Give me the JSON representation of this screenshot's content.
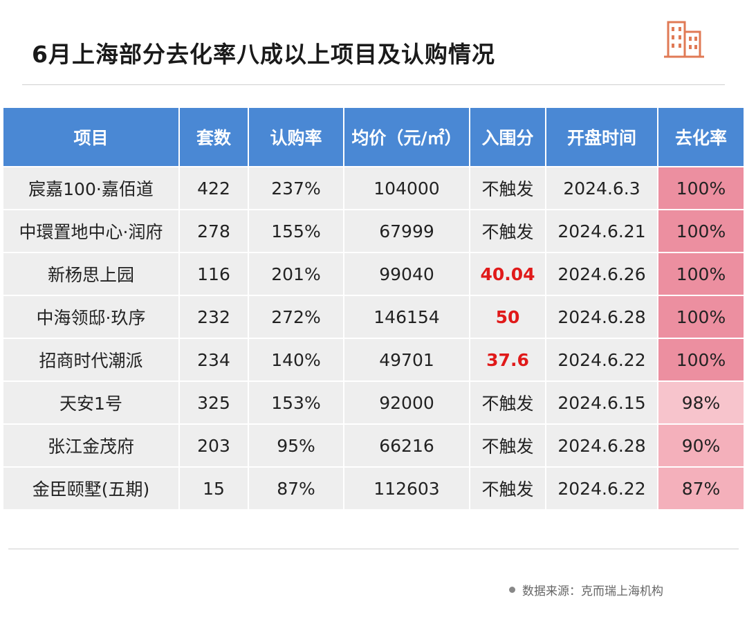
{
  "title": "6月上海部分去化率八成以上项目及认购情况",
  "colors": {
    "header_bg": "#4a88d4",
    "row_bg": "#eeeeee",
    "highlight_text": "#e01a1a",
    "rate_100": "#ec8fa0",
    "rate_98": "#f7c4cc",
    "rate_90": "#f4b0bb",
    "rate_87": "#f4b0bb"
  },
  "logo_icon": "building-icon",
  "table": {
    "headers": [
      "项目",
      "套数",
      "认购率",
      "均价（元/㎡）",
      "入围分",
      "开盘时间",
      "去化率"
    ],
    "rows": [
      {
        "project": "宸嘉100·嘉佰道",
        "units": "422",
        "subscription_rate": "237%",
        "avg_price": "104000",
        "qualify_score": "不触发",
        "qualify_highlight": false,
        "open_date": "2024.6.3",
        "sell_through": "100%",
        "sell_through_value": 100
      },
      {
        "project": "中環置地中心·润府",
        "units": "278",
        "subscription_rate": "155%",
        "avg_price": "67999",
        "qualify_score": "不触发",
        "qualify_highlight": false,
        "open_date": "2024.6.21",
        "sell_through": "100%",
        "sell_through_value": 100
      },
      {
        "project": "新杨思上园",
        "units": "116",
        "subscription_rate": "201%",
        "avg_price": "99040",
        "qualify_score": "40.04",
        "qualify_highlight": true,
        "open_date": "2024.6.26",
        "sell_through": "100%",
        "sell_through_value": 100
      },
      {
        "project": "中海领邸·玖序",
        "units": "232",
        "subscription_rate": "272%",
        "avg_price": "146154",
        "qualify_score": "50",
        "qualify_highlight": true,
        "open_date": "2024.6.28",
        "sell_through": "100%",
        "sell_through_value": 100
      },
      {
        "project": "招商时代潮派",
        "units": "234",
        "subscription_rate": "140%",
        "avg_price": "49701",
        "qualify_score": "37.6",
        "qualify_highlight": true,
        "open_date": "2024.6.22",
        "sell_through": "100%",
        "sell_through_value": 100
      },
      {
        "project": "天安1号",
        "units": "325",
        "subscription_rate": "153%",
        "avg_price": "92000",
        "qualify_score": "不触发",
        "qualify_highlight": false,
        "open_date": "2024.6.15",
        "sell_through": "98%",
        "sell_through_value": 98
      },
      {
        "project": "张江金茂府",
        "units": "203",
        "subscription_rate": "95%",
        "avg_price": "66216",
        "qualify_score": "不触发",
        "qualify_highlight": false,
        "open_date": "2024.6.28",
        "sell_through": "90%",
        "sell_through_value": 90
      },
      {
        "project": "金臣颐墅(五期)",
        "units": "15",
        "subscription_rate": "87%",
        "avg_price": "112603",
        "qualify_score": "不触发",
        "qualify_highlight": false,
        "open_date": "2024.6.22",
        "sell_through": "87%",
        "sell_through_value": 87
      }
    ]
  },
  "source": "数据来源：克而瑞上海机构"
}
